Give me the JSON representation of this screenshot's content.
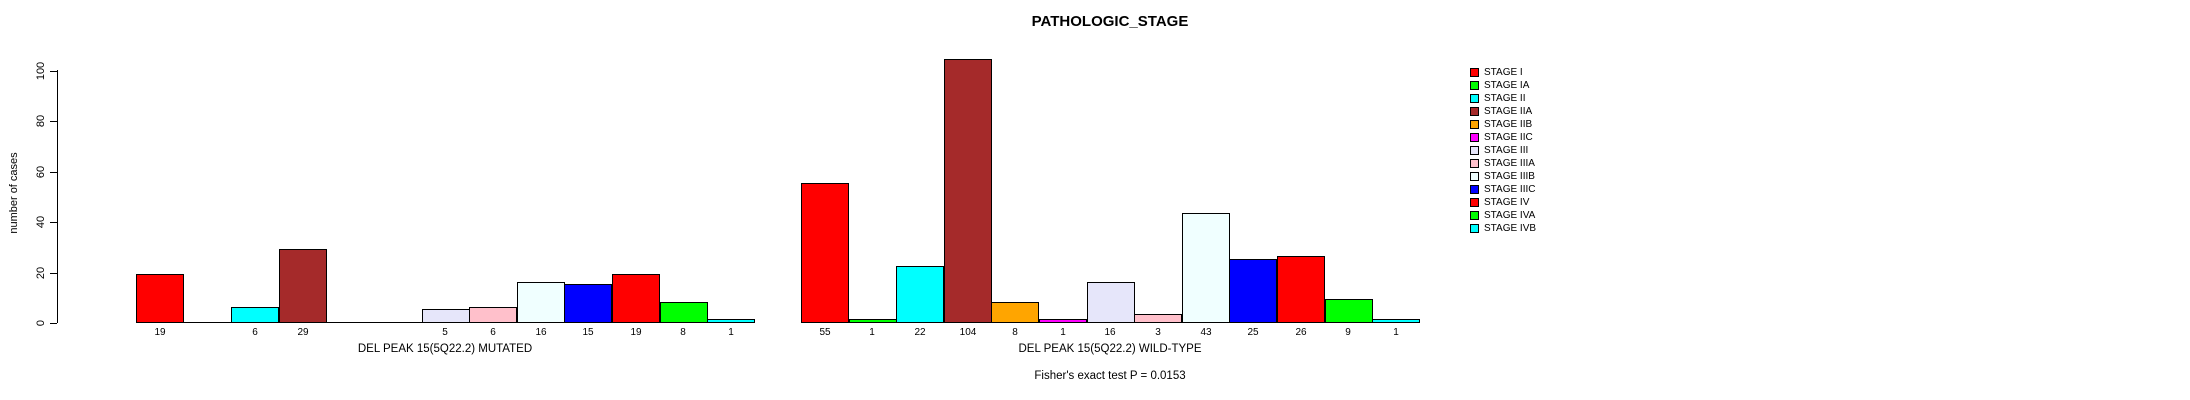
{
  "chart_data": {
    "type": "bar",
    "title": "PATHOLOGIC_STAGE",
    "ylabel": "number of cases",
    "ylim": [
      0,
      100
    ],
    "yticks": [
      0,
      20,
      40,
      60,
      80,
      100
    ],
    "grid": false,
    "legend_position": "right",
    "categories": [
      "STAGE I",
      "STAGE IA",
      "STAGE II",
      "STAGE IIA",
      "STAGE IIB",
      "STAGE IIC",
      "STAGE III",
      "STAGE IIIA",
      "STAGE IIIB",
      "STAGE IIIC",
      "STAGE IV",
      "STAGE IVA",
      "STAGE IVB"
    ],
    "colors": [
      "#FF0000",
      "#00FF00",
      "#00FFFF",
      "#A52A2A",
      "#FFA500",
      "#FF00FF",
      "#E6E6FA",
      "#FFC0CB",
      "#F0FFFF",
      "#0000FF",
      "#FF0000",
      "#00FF00",
      "#00FFFF"
    ],
    "series": [
      {
        "name": "DEL PEAK 15(5Q22.2) MUTATED",
        "values": [
          19,
          0,
          6,
          29,
          0,
          0,
          5,
          6,
          16,
          15,
          19,
          8,
          1
        ]
      },
      {
        "name": "DEL PEAK 15(5Q22.2) WILD-TYPE",
        "values": [
          55,
          1,
          22,
          104,
          8,
          1,
          16,
          3,
          43,
          25,
          26,
          9,
          1
        ]
      }
    ],
    "annotation": "Fisher's exact test P = 0.0153"
  }
}
